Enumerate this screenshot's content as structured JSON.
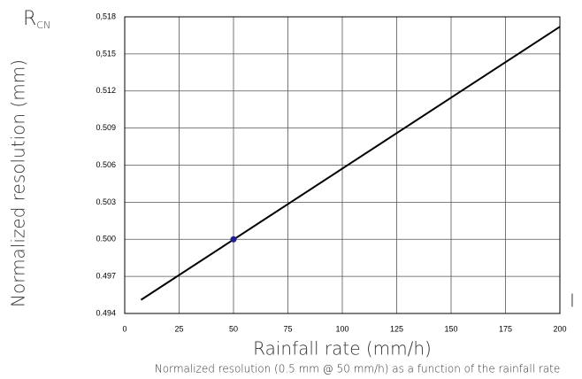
{
  "chart_data": {
    "type": "line",
    "y_symbol": {
      "text": "R",
      "subscript": "CN"
    },
    "ylabel": "Normalized resolution (mm)",
    "xlabel": "Rainfall rate (mm/h)",
    "caption": "Normalized resolution (0.5 mm @ 50 mm/h) as a function of the rainfall rate",
    "annotation": "I",
    "series": [
      {
        "color": "#000000",
        "marker": false,
        "x": [
          7.5,
          200
        ],
        "values": [
          0.4951,
          0.5172
        ]
      },
      {
        "color": "#1f1f8f",
        "marker": true,
        "x": [
          50
        ],
        "values": [
          0.5
        ]
      }
    ],
    "xlim": [
      0,
      200
    ],
    "xticks": [
      0,
      25,
      50,
      75,
      100,
      125,
      150,
      175,
      200
    ],
    "ylim": [
      0.494,
      0.518
    ],
    "yticks": [
      0.494,
      0.497,
      {
        "value": 0.5,
        "label": "0.500"
      },
      0.503,
      0.506,
      0.509,
      0.512,
      {
        "value": 0.515,
        "label": "0,515"
      },
      {
        "value": 0.518,
        "label": "0,518"
      }
    ],
    "grid": true
  }
}
